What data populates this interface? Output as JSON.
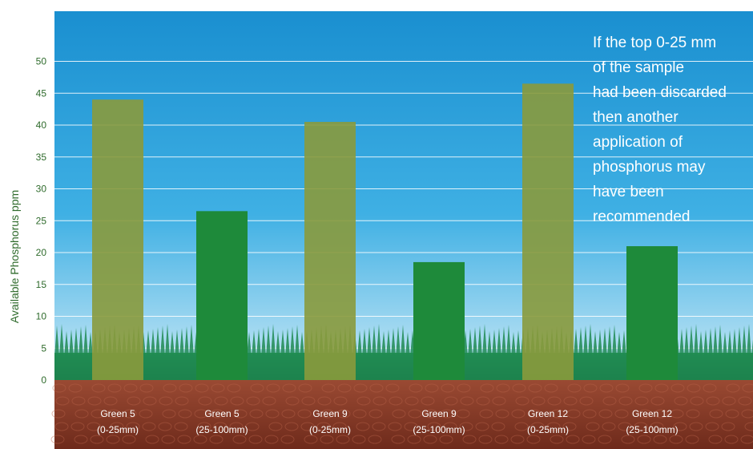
{
  "chart_data": {
    "type": "bar",
    "categories": [
      [
        "Green 5",
        "(0-25mm)"
      ],
      [
        "Green 5",
        "(25-100mm)"
      ],
      [
        "Green 9",
        "(0-25mm)"
      ],
      [
        "Green 9",
        "(25-100mm)"
      ],
      [
        "Green 12",
        "(0-25mm)"
      ],
      [
        "Green 12",
        "(25-100mm)"
      ]
    ],
    "values": [
      44,
      26.5,
      40.5,
      18.5,
      46.5,
      21
    ],
    "bar_colors": [
      "#8a9a3c",
      "#1e8a3a",
      "#8a9a3c",
      "#1e8a3a",
      "#8a9a3c",
      "#1e8a3a"
    ],
    "ylabel": "Available Phosphorus ppm",
    "yticks": [
      0,
      5,
      10,
      15,
      20,
      25,
      30,
      35,
      40,
      45,
      50
    ],
    "ylim": [
      0,
      55
    ],
    "grid": true,
    "annotation": [
      "If the top 0-25 mm",
      "of the sample",
      "had been discarded",
      "then another",
      "application of",
      "phosphorus may",
      "have been",
      "recommended"
    ]
  },
  "colors": {
    "sky_top": "#1a8fd0",
    "sky_bottom": "#cbe9f6",
    "grass": "#1f7a45",
    "soil": "#8b3a26",
    "tick_text": "#2f6b2c",
    "category_text": "#ffffff"
  }
}
